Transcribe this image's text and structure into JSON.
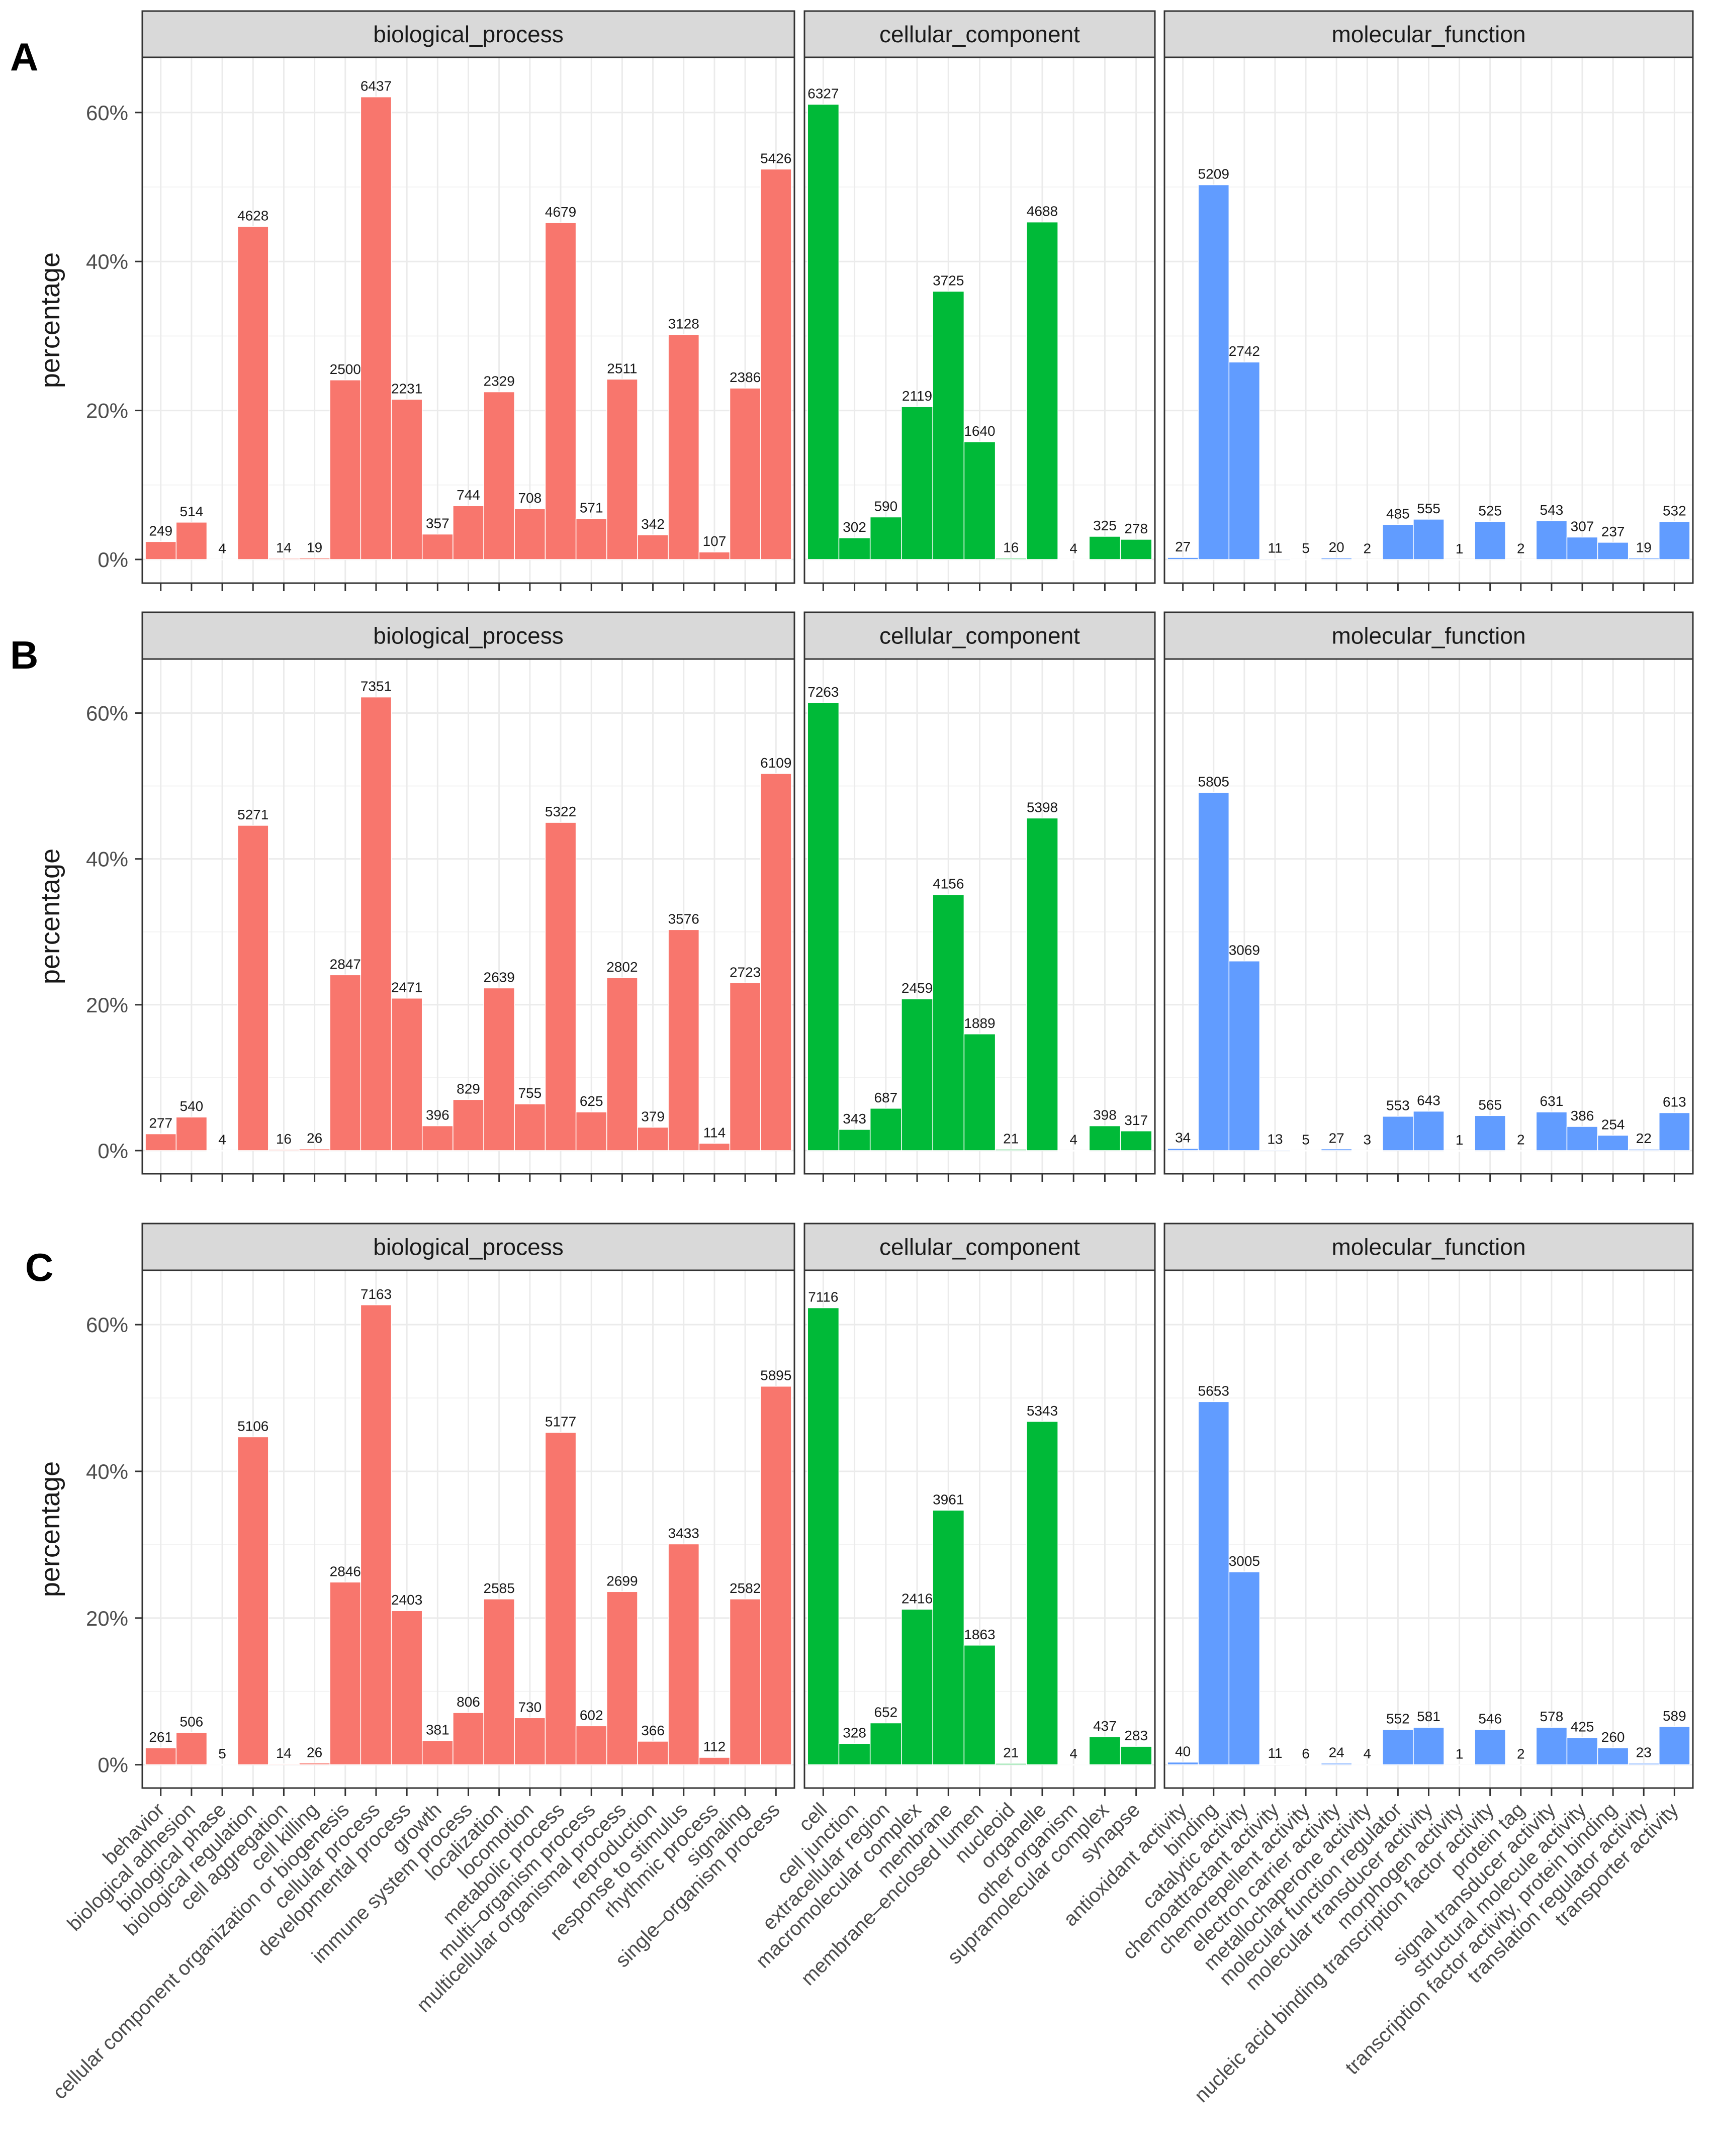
{
  "colors": {
    "biological_process": "#F8766D",
    "cellular_component": "#00BA38",
    "molecular_function": "#619CFF"
  },
  "categories": {
    "biological_process": [
      "behavior",
      "biological adhesion",
      "biological phase",
      "biological regulation",
      "cell aggregation",
      "cell killing",
      "cellular component organization or biogenesis",
      "cellular process",
      "developmental process",
      "growth",
      "immune system process",
      "localization",
      "locomotion",
      "metabolic process",
      "multi–organism process",
      "multicellular organismal process",
      "reproduction",
      "response to stimulus",
      "rhythmic process",
      "signaling",
      "single–organism process"
    ],
    "cellular_component": [
      "cell",
      "cell junction",
      "extracellular region",
      "macromolecular complex",
      "membrane",
      "membrane–enclosed lumen",
      "nucleoid",
      "organelle",
      "other organism",
      "supramolecular complex",
      "synapse"
    ],
    "molecular_function": [
      "antioxidant activity",
      "binding",
      "catalytic activity",
      "chemoattractant activity",
      "chemorepellent activity",
      "electron carrier activity",
      "metallochaperone activity",
      "molecular function regulator",
      "molecular transducer activity",
      "morphogen activity",
      "nucleic acid binding transcription factor activity",
      "protein tag",
      "signal transducer activity",
      "structural molecule activity",
      "transcription factor activity, protein binding",
      "translation regulator activity",
      "transporter activity"
    ]
  },
  "chart_data": [
    {
      "type": "bar",
      "panel": "A",
      "ylabel": "percentage",
      "yticks": [
        "0%",
        "20%",
        "40%",
        "60%"
      ],
      "ylim": [
        0,
        66
      ],
      "facets": [
        {
          "name": "biological_process",
          "counts": [
            249,
            514,
            4,
            4628,
            14,
            19,
            2500,
            6437,
            2231,
            357,
            744,
            2329,
            708,
            4679,
            571,
            2511,
            342,
            3128,
            107,
            2386,
            5426
          ],
          "percent": [
            2.4,
            5.0,
            0.04,
            44.7,
            0.14,
            0.18,
            24.1,
            62.1,
            21.5,
            3.4,
            7.2,
            22.5,
            6.8,
            45.2,
            5.5,
            24.2,
            3.3,
            30.2,
            1.0,
            23.0,
            52.4
          ]
        },
        {
          "name": "cellular_component",
          "counts": [
            6327,
            302,
            590,
            2119,
            3725,
            1640,
            16,
            4688,
            4,
            325,
            278
          ],
          "percent": [
            61.1,
            2.9,
            5.7,
            20.5,
            36.0,
            15.8,
            0.15,
            45.3,
            0.04,
            3.1,
            2.7
          ]
        },
        {
          "name": "molecular_function",
          "counts": [
            27,
            5209,
            2742,
            11,
            5,
            20,
            2,
            485,
            555,
            1,
            525,
            2,
            543,
            307,
            237,
            19,
            532
          ],
          "percent": [
            0.26,
            50.3,
            26.5,
            0.11,
            0.05,
            0.19,
            0.02,
            4.7,
            5.4,
            0.01,
            5.1,
            0.02,
            5.2,
            3.0,
            2.3,
            0.18,
            5.1
          ]
        }
      ]
    },
    {
      "type": "bar",
      "panel": "B",
      "ylabel": "percentage",
      "yticks": [
        "0%",
        "20%",
        "40%",
        "60%"
      ],
      "ylim": [
        0,
        66
      ],
      "facets": [
        {
          "name": "biological_process",
          "counts": [
            277,
            540,
            4,
            5271,
            16,
            26,
            2847,
            7351,
            2471,
            396,
            829,
            2639,
            755,
            5322,
            625,
            2802,
            379,
            3576,
            114,
            2723,
            6109
          ],
          "percent": [
            2.3,
            4.6,
            0.03,
            44.6,
            0.14,
            0.22,
            24.1,
            62.2,
            20.9,
            3.4,
            7.0,
            22.3,
            6.4,
            45.0,
            5.3,
            23.7,
            3.2,
            30.3,
            1.0,
            23.0,
            51.7
          ]
        },
        {
          "name": "cellular_component",
          "counts": [
            7263,
            343,
            687,
            2459,
            4156,
            1889,
            21,
            5398,
            4,
            398,
            317
          ],
          "percent": [
            61.4,
            2.9,
            5.8,
            20.8,
            35.1,
            16.0,
            0.18,
            45.6,
            0.03,
            3.4,
            2.7
          ]
        },
        {
          "name": "molecular_function",
          "counts": [
            34,
            5805,
            3069,
            13,
            5,
            27,
            3,
            553,
            643,
            1,
            565,
            2,
            631,
            386,
            254,
            22,
            613
          ],
          "percent": [
            0.29,
            49.1,
            26.0,
            0.11,
            0.04,
            0.23,
            0.03,
            4.7,
            5.4,
            0.01,
            4.8,
            0.02,
            5.3,
            3.3,
            2.1,
            0.19,
            5.2
          ]
        }
      ]
    },
    {
      "type": "bar",
      "panel": "C",
      "ylabel": "percentage",
      "yticks": [
        "0%",
        "20%",
        "40%",
        "60%"
      ],
      "ylim": [
        0,
        66
      ],
      "facets": [
        {
          "name": "biological_process",
          "counts": [
            261,
            506,
            5,
            5106,
            14,
            26,
            2846,
            7163,
            2403,
            381,
            806,
            2585,
            730,
            5177,
            602,
            2699,
            366,
            3433,
            112,
            2582,
            5895
          ],
          "percent": [
            2.3,
            4.4,
            0.04,
            44.7,
            0.12,
            0.23,
            24.9,
            62.7,
            21.0,
            3.3,
            7.1,
            22.6,
            6.4,
            45.3,
            5.3,
            23.6,
            3.2,
            30.1,
            1.0,
            22.6,
            51.6
          ]
        },
        {
          "name": "cellular_component",
          "counts": [
            7116,
            328,
            652,
            2416,
            3961,
            1863,
            21,
            5343,
            4,
            437,
            283
          ],
          "percent": [
            62.3,
            2.9,
            5.7,
            21.2,
            34.7,
            16.3,
            0.18,
            46.8,
            0.04,
            3.8,
            2.5
          ]
        },
        {
          "name": "molecular_function",
          "counts": [
            40,
            5653,
            3005,
            11,
            6,
            24,
            4,
            552,
            581,
            1,
            546,
            2,
            578,
            425,
            260,
            23,
            589
          ],
          "percent": [
            0.35,
            49.5,
            26.3,
            0.1,
            0.05,
            0.21,
            0.04,
            4.8,
            5.1,
            0.01,
            4.8,
            0.02,
            5.1,
            3.7,
            2.3,
            0.2,
            5.2
          ]
        }
      ]
    }
  ]
}
